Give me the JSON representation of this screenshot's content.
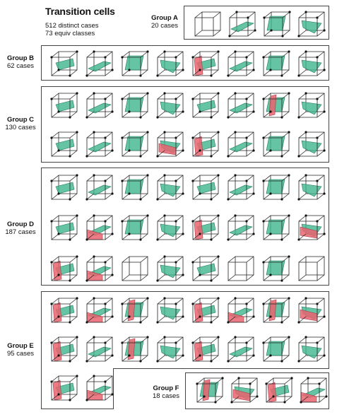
{
  "header": {
    "title": "Transition cells",
    "distinct_cases": "512 distinct cases",
    "equiv_classes": "73 equiv classes"
  },
  "colors": {
    "frame": "#444444",
    "edge": "#222222",
    "vertex": "#111111",
    "green_fill": "#3fb58c",
    "green_stroke": "#1f7a5a",
    "red_fill": "#ea6470",
    "red_stroke": "#a63a44"
  },
  "groups": [
    {
      "id": "a",
      "name": "Group A",
      "count_label": "20 cases",
      "rows": [
        {
          "cells": [
            "empty",
            "green",
            "green",
            "green"
          ]
        }
      ]
    },
    {
      "id": "b",
      "name": "Group B",
      "count_label": "62 cases",
      "rows": [
        {
          "cells": [
            "green",
            "green",
            "green",
            "green",
            "red",
            "green",
            "green",
            "green"
          ]
        }
      ]
    },
    {
      "id": "c",
      "name": "Group C",
      "count_label": "130 cases",
      "rows": [
        {
          "cells": [
            "green",
            "green",
            "green",
            "green",
            "green",
            "green",
            "red",
            "green"
          ]
        },
        {
          "cells": [
            "green",
            "green",
            "green",
            "red",
            "red",
            "green",
            "green",
            "green"
          ]
        }
      ]
    },
    {
      "id": "d",
      "name": "Group D",
      "count_label": "187 cases",
      "rows": [
        {
          "cells": [
            "green",
            "green",
            "green",
            "green",
            "green",
            "green",
            "green",
            "green"
          ]
        },
        {
          "cells": [
            "green",
            "red",
            "green",
            "green",
            "red",
            "green",
            "green",
            "red"
          ]
        },
        {
          "cells": [
            "red",
            "red",
            "empty",
            "green",
            "green",
            "empty",
            "green",
            "empty"
          ]
        }
      ]
    },
    {
      "id": "e",
      "name": "Group E",
      "count_label": "95 cases",
      "rows": [
        {
          "cells": [
            "red",
            "red",
            "red",
            "green",
            "red",
            "red",
            "red",
            "red"
          ]
        },
        {
          "cells": [
            "red",
            "green",
            "red",
            "green",
            "red",
            "green",
            "green",
            "green"
          ]
        },
        {
          "cells": [
            "red",
            "red"
          ]
        }
      ]
    },
    {
      "id": "f",
      "name": "Group F",
      "count_label": "18 cases",
      "rows": [
        {
          "cells": [
            "red",
            "red",
            "red",
            "red"
          ]
        }
      ]
    }
  ]
}
